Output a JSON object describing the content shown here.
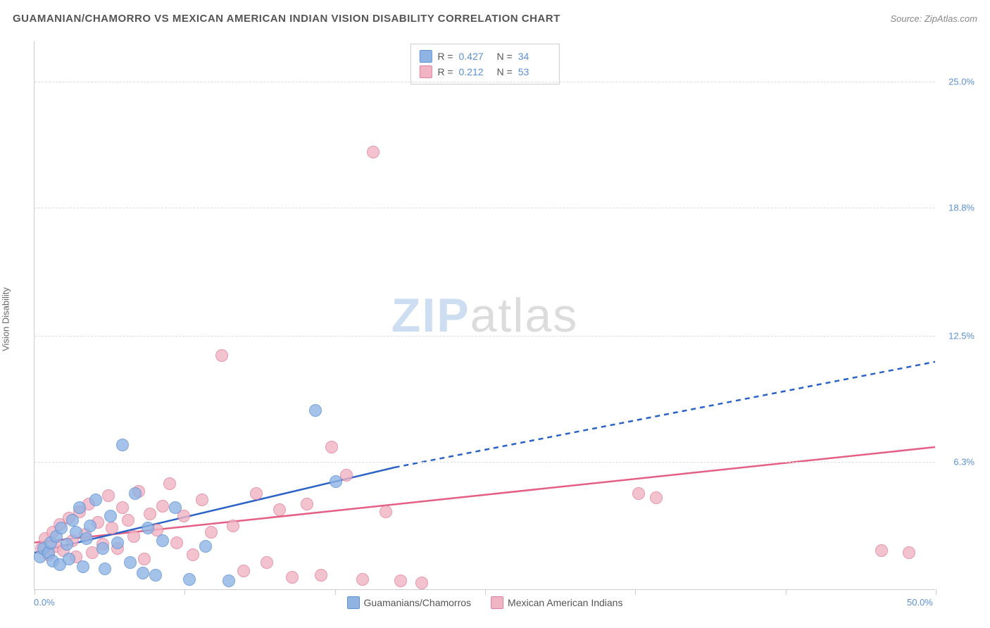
{
  "title": "GUAMANIAN/CHAMORRO VS MEXICAN AMERICAN INDIAN VISION DISABILITY CORRELATION CHART",
  "source_label": "Source: ",
  "source_name": "ZipAtlas.com",
  "ylabel": "Vision Disability",
  "watermark_zip": "ZIP",
  "watermark_atlas": "atlas",
  "chart": {
    "type": "scatter",
    "xlim": [
      0,
      50
    ],
    "ylim": [
      0,
      27
    ],
    "xlabel_min": "0.0%",
    "xlabel_max": "50.0%",
    "xtick_positions": [
      0,
      8.33,
      16.67,
      25,
      33.33,
      41.67,
      50
    ],
    "ygrid": [
      {
        "value": 6.3,
        "label": "6.3%"
      },
      {
        "value": 12.5,
        "label": "12.5%"
      },
      {
        "value": 18.8,
        "label": "18.8%"
      },
      {
        "value": 25.0,
        "label": "25.0%"
      }
    ],
    "background_color": "#ffffff",
    "grid_color": "#dddddd",
    "axis_color": "#cccccc",
    "tick_label_color": "#5b8fd6",
    "point_radius": 9,
    "point_stroke_width": 1.2,
    "point_fill_opacity": 0.35,
    "series": {
      "a": {
        "label": "Guamanians/Chamorros",
        "R_label": "R = ",
        "R": "0.427",
        "N_label": "N = ",
        "N": "34",
        "fill": "#8fb4e3",
        "stroke": "#5b8fd6",
        "trend_color": "#2a62c9",
        "trend_width": 2.5,
        "trend_solid": {
          "x1": 0,
          "y1": 1.8,
          "x2": 20,
          "y2": 6.0
        },
        "trend_dashed": {
          "x1": 20,
          "y1": 6.0,
          "x2": 50,
          "y2": 11.2
        },
        "points": [
          [
            0.3,
            1.6
          ],
          [
            0.5,
            2.0
          ],
          [
            0.8,
            1.8
          ],
          [
            0.9,
            2.3
          ],
          [
            1.0,
            1.4
          ],
          [
            1.2,
            2.6
          ],
          [
            1.4,
            1.2
          ],
          [
            1.5,
            3.0
          ],
          [
            1.8,
            2.2
          ],
          [
            1.9,
            1.5
          ],
          [
            2.1,
            3.4
          ],
          [
            2.3,
            2.8
          ],
          [
            2.5,
            4.0
          ],
          [
            2.7,
            1.1
          ],
          [
            2.9,
            2.5
          ],
          [
            3.1,
            3.1
          ],
          [
            3.4,
            4.4
          ],
          [
            3.8,
            2.0
          ],
          [
            3.9,
            1.0
          ],
          [
            4.2,
            3.6
          ],
          [
            4.6,
            2.3
          ],
          [
            4.9,
            7.1
          ],
          [
            5.3,
            1.3
          ],
          [
            5.6,
            4.7
          ],
          [
            6.0,
            0.8
          ],
          [
            6.3,
            3.0
          ],
          [
            6.7,
            0.7
          ],
          [
            7.1,
            2.4
          ],
          [
            7.8,
            4.0
          ],
          [
            8.6,
            0.5
          ],
          [
            9.5,
            2.1
          ],
          [
            10.8,
            0.4
          ],
          [
            15.6,
            8.8
          ],
          [
            16.7,
            5.3
          ]
        ]
      },
      "b": {
        "label": "Mexican American Indians",
        "R_label": "R = ",
        "R": "0.212",
        "N_label": "N = ",
        "N": "53",
        "fill": "#f0b4c4",
        "stroke": "#e07f9a",
        "trend_color": "#e55f85",
        "trend_width": 2.5,
        "trend": {
          "x1": 0,
          "y1": 2.3,
          "x2": 50,
          "y2": 7.0
        },
        "points": [
          [
            0.4,
            2.0
          ],
          [
            0.6,
            2.5
          ],
          [
            0.8,
            1.7
          ],
          [
            1.0,
            2.8
          ],
          [
            1.2,
            2.1
          ],
          [
            1.4,
            3.2
          ],
          [
            1.6,
            1.9
          ],
          [
            1.9,
            3.5
          ],
          [
            2.1,
            2.4
          ],
          [
            2.3,
            1.6
          ],
          [
            2.5,
            3.8
          ],
          [
            2.8,
            2.7
          ],
          [
            3.0,
            4.2
          ],
          [
            3.2,
            1.8
          ],
          [
            3.5,
            3.3
          ],
          [
            3.8,
            2.2
          ],
          [
            4.1,
            4.6
          ],
          [
            4.3,
            3.0
          ],
          [
            4.6,
            2.0
          ],
          [
            4.9,
            4.0
          ],
          [
            5.2,
            3.4
          ],
          [
            5.5,
            2.6
          ],
          [
            5.8,
            4.8
          ],
          [
            6.1,
            1.5
          ],
          [
            6.4,
            3.7
          ],
          [
            6.8,
            2.9
          ],
          [
            7.1,
            4.1
          ],
          [
            7.5,
            5.2
          ],
          [
            7.9,
            2.3
          ],
          [
            8.3,
            3.6
          ],
          [
            8.8,
            1.7
          ],
          [
            9.3,
            4.4
          ],
          [
            9.8,
            2.8
          ],
          [
            10.4,
            11.5
          ],
          [
            11.0,
            3.1
          ],
          [
            11.6,
            0.9
          ],
          [
            12.3,
            4.7
          ],
          [
            12.9,
            1.3
          ],
          [
            13.6,
            3.9
          ],
          [
            14.3,
            0.6
          ],
          [
            15.1,
            4.2
          ],
          [
            15.9,
            0.7
          ],
          [
            16.5,
            7.0
          ],
          [
            17.3,
            5.6
          ],
          [
            18.2,
            0.5
          ],
          [
            18.8,
            21.5
          ],
          [
            19.5,
            3.8
          ],
          [
            20.3,
            0.4
          ],
          [
            21.5,
            0.3
          ],
          [
            33.5,
            4.7
          ],
          [
            34.5,
            4.5
          ],
          [
            47.0,
            1.9
          ],
          [
            48.5,
            1.8
          ]
        ]
      }
    }
  }
}
